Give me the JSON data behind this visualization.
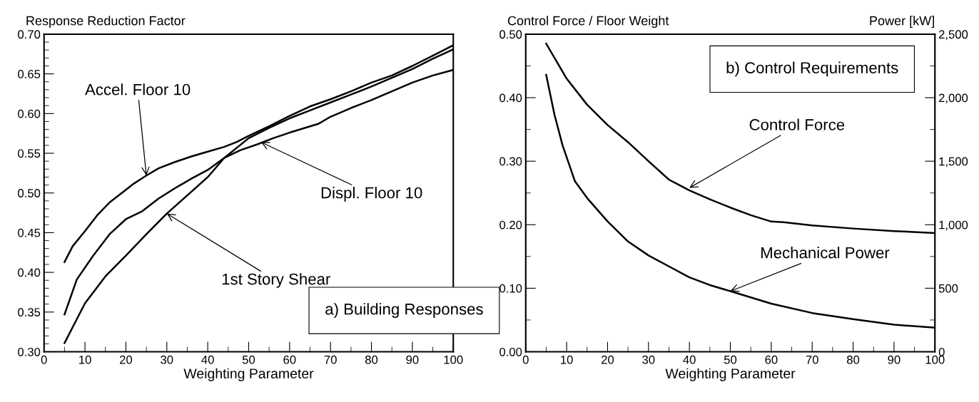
{
  "chart_data": [
    {
      "type": "line",
      "ylabel": "Response Reduction Factor",
      "xlabel": "Weighting Parameter",
      "xlim": [
        0,
        100
      ],
      "ylim": [
        0.3,
        0.7
      ],
      "xticks": [
        0,
        {
          "value": 5,
          "label": null
        },
        10,
        {
          "value": 15,
          "label": null
        },
        20,
        {
          "value": 25,
          "label": null
        },
        30,
        {
          "value": 35,
          "label": null
        },
        40,
        {
          "value": 45,
          "label": null
        },
        50,
        {
          "value": 55,
          "label": null
        },
        60,
        {
          "value": 65,
          "label": null
        },
        70,
        {
          "value": 75,
          "label": null
        },
        80,
        {
          "value": 85,
          "label": null
        },
        90,
        {
          "value": 95,
          "label": null
        },
        100
      ],
      "yticks": [
        {
          "value": 0.3,
          "label": "0.30"
        },
        {
          "value": 0.31,
          "label": null
        },
        {
          "value": 0.32,
          "label": null
        },
        {
          "value": 0.33,
          "label": null
        },
        {
          "value": 0.34,
          "label": null
        },
        0.35,
        {
          "value": 0.36,
          "label": null
        },
        {
          "value": 0.37,
          "label": null
        },
        {
          "value": 0.38,
          "label": null
        },
        {
          "value": 0.39,
          "label": null
        },
        {
          "value": 0.4,
          "label": "0.40"
        },
        {
          "value": 0.41,
          "label": null
        },
        {
          "value": 0.42,
          "label": null
        },
        {
          "value": 0.43,
          "label": null
        },
        {
          "value": 0.44,
          "label": null
        },
        0.45,
        {
          "value": 0.46,
          "label": null
        },
        {
          "value": 0.47,
          "label": null
        },
        {
          "value": 0.48,
          "label": null
        },
        {
          "value": 0.49,
          "label": null
        },
        {
          "value": 0.5,
          "label": "0.50"
        },
        {
          "value": 0.51,
          "label": null
        },
        {
          "value": 0.52,
          "label": null
        },
        {
          "value": 0.53,
          "label": null
        },
        {
          "value": 0.54,
          "label": null
        },
        0.55,
        {
          "value": 0.56,
          "label": null
        },
        {
          "value": 0.57,
          "label": null
        },
        {
          "value": 0.58,
          "label": null
        },
        {
          "value": 0.59,
          "label": null
        },
        {
          "value": 0.6,
          "label": "0.60"
        },
        {
          "value": 0.61,
          "label": null
        },
        {
          "value": 0.62,
          "label": null
        },
        {
          "value": 0.63,
          "label": null
        },
        {
          "value": 0.64,
          "label": null
        },
        0.65,
        {
          "value": 0.66,
          "label": null
        },
        {
          "value": 0.67,
          "label": null
        },
        {
          "value": 0.68,
          "label": null
        },
        {
          "value": 0.69,
          "label": null
        },
        {
          "value": 0.7,
          "label": "0.70"
        }
      ],
      "grid": false,
      "legend": false,
      "marker": "none",
      "line_style": "solid",
      "series": [
        {
          "color": "#000000",
          "x": [
            5,
            7,
            10,
            13,
            16,
            19,
            22,
            25,
            28,
            32,
            36,
            40,
            44,
            47,
            50,
            55,
            60,
            65,
            70,
            75,
            80,
            85,
            90,
            95,
            100
          ],
          "values": [
            0.413,
            0.433,
            0.452,
            0.472,
            0.488,
            0.5,
            0.512,
            0.522,
            0.531,
            0.539,
            0.546,
            0.552,
            0.558,
            0.564,
            0.572,
            0.584,
            0.597,
            0.609,
            0.618,
            0.628,
            0.639,
            0.648,
            0.66,
            0.673,
            0.686
          ]
        },
        {
          "color": "#000000",
          "x": [
            5,
            8,
            12,
            16,
            20,
            24,
            28,
            32,
            36,
            40,
            44,
            48,
            52,
            56,
            60,
            67,
            70,
            75,
            80,
            85,
            90,
            95,
            100
          ],
          "values": [
            0.347,
            0.391,
            0.421,
            0.448,
            0.467,
            0.477,
            0.493,
            0.506,
            0.518,
            0.529,
            0.544,
            0.554,
            0.561,
            0.569,
            0.576,
            0.587,
            0.596,
            0.607,
            0.617,
            0.628,
            0.639,
            0.648,
            0.655
          ]
        },
        {
          "color": "#000000",
          "x": [
            5,
            10,
            15,
            20,
            25,
            30,
            35,
            40,
            44,
            50,
            55,
            60,
            65,
            70,
            75,
            80,
            85,
            90,
            95,
            100
          ],
          "values": [
            0.311,
            0.361,
            0.395,
            0.421,
            0.448,
            0.474,
            0.497,
            0.52,
            0.544,
            0.569,
            0.582,
            0.594,
            0.604,
            0.614,
            0.624,
            0.634,
            0.645,
            0.656,
            0.669,
            0.681
          ]
        }
      ],
      "annotations": [
        {
          "text": "Accel. Floor 10",
          "x": 25,
          "y": 0.522
        },
        {
          "text": "Displ. Floor 10",
          "x": 53,
          "y": 0.564
        },
        {
          "text": "1st Story Shear",
          "x": 30,
          "y": 0.474
        },
        "a) Building Responses"
      ]
    },
    {
      "type": "line",
      "ylabel": "Control Force / Floor Weight",
      "y2label": "Power [kW]",
      "xlabel": "Weighting Parameter",
      "xlim": [
        0,
        100
      ],
      "ylim": [
        0,
        0.5
      ],
      "y2lim": [
        0,
        2500
      ],
      "xticks": [
        0,
        {
          "value": 5,
          "label": null
        },
        10,
        {
          "value": 15,
          "label": null
        },
        20,
        {
          "value": 25,
          "label": null
        },
        30,
        {
          "value": 35,
          "label": null
        },
        40,
        {
          "value": 45,
          "label": null
        },
        50,
        {
          "value": 55,
          "label": null
        },
        60,
        {
          "value": 65,
          "label": null
        },
        70,
        {
          "value": 75,
          "label": null
        },
        80,
        {
          "value": 85,
          "label": null
        },
        90,
        {
          "value": 95,
          "label": null
        },
        100
      ],
      "yticks": [
        {
          "value": 0,
          "label": "0.00"
        },
        {
          "value": 0.05,
          "label": null
        },
        {
          "value": 0.1,
          "label": "0.10"
        },
        {
          "value": 0.15,
          "label": null
        },
        {
          "value": 0.2,
          "label": "0.20"
        },
        {
          "value": 0.25,
          "label": null
        },
        {
          "value": 0.3,
          "label": "0.30"
        },
        {
          "value": 0.35,
          "label": null
        },
        {
          "value": 0.4,
          "label": "0.40"
        },
        {
          "value": 0.45,
          "label": null
        },
        {
          "value": 0.5,
          "label": "0.50"
        }
      ],
      "y2ticks": [
        0,
        {
          "value": 250,
          "label": null
        },
        500,
        {
          "value": 750,
          "label": null
        },
        {
          "value": 1000,
          "label": "1,000"
        },
        {
          "value": 1250,
          "label": null
        },
        {
          "value": 1500,
          "label": "1,500"
        },
        {
          "value": 1750,
          "label": null
        },
        {
          "value": 2000,
          "label": "2,000"
        },
        {
          "value": 2250,
          "label": null
        },
        {
          "value": 2500,
          "label": "2,500"
        }
      ],
      "grid": false,
      "legend": false,
      "marker": "none",
      "line_style": "solid",
      "series": [
        {
          "color": "#000000",
          "x": [
            5,
            8,
            10,
            15,
            20,
            25,
            30,
            35,
            40,
            45,
            50,
            55,
            60,
            63,
            70,
            80,
            90,
            100
          ],
          "values": [
            0.485,
            0.452,
            0.43,
            0.389,
            0.357,
            0.33,
            0.3,
            0.271,
            0.254,
            0.24,
            0.227,
            0.215,
            0.205,
            0.204,
            0.199,
            0.194,
            0.19,
            0.187
          ]
        },
        {
          "color": "#000000",
          "axis": "y2",
          "x": [
            5,
            7,
            9,
            12,
            15,
            20,
            25,
            30,
            35,
            40,
            45,
            50,
            60,
            70,
            80,
            90,
            100
          ],
          "values": [
            2180,
            1870,
            1625,
            1344,
            1210,
            1026,
            868,
            758,
            672,
            586,
            525,
            477,
            379,
            305,
            257,
            213,
            190
          ]
        }
      ],
      "annotations": [
        "b) Control Requirements",
        {
          "text": "Control Force",
          "x": 40,
          "y": 0.258
        },
        {
          "text": "Mechanical Power",
          "x": 50,
          "y": 0.0954
        }
      ]
    }
  ]
}
